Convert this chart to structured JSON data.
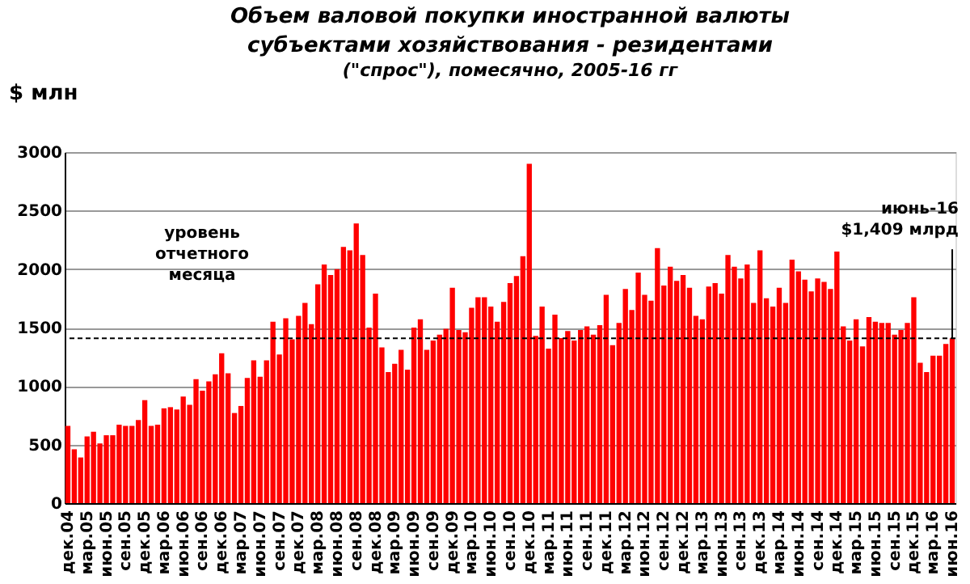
{
  "chart_data": {
    "type": "bar",
    "title": "Объем валовой  покупки  иностранной валюты\nсубъектами хозяйствования - резидентами",
    "subtitle": "(\"спрос\"), помесячно, 2005-16  гг",
    "ylabel": "$ млн",
    "categories": [
      "дек.04",
      null,
      null,
      "мар.05",
      null,
      null,
      "июн.05",
      null,
      null,
      "сен.05",
      null,
      null,
      "дек.05",
      null,
      null,
      "мар.06",
      null,
      null,
      "июн.06",
      null,
      null,
      "сен.06",
      null,
      null,
      "дек.06",
      null,
      null,
      "мар.07",
      null,
      null,
      "июн.07",
      null,
      null,
      "сен.07",
      null,
      null,
      "дек.07",
      null,
      null,
      "мар.08",
      null,
      null,
      "июн.08",
      null,
      null,
      "сен.08",
      null,
      null,
      "дек.08",
      null,
      null,
      "мар.09",
      null,
      null,
      "июн.09",
      null,
      null,
      "сен.09",
      null,
      null,
      "дек.09",
      null,
      null,
      "мар.10",
      null,
      null,
      "июн.10",
      null,
      null,
      "сен.10",
      null,
      null,
      "дек.10",
      null,
      null,
      "мар.11",
      null,
      null,
      "июн.11",
      null,
      null,
      "сен.11",
      null,
      null,
      "дек.11",
      null,
      null,
      "мар.12",
      null,
      null,
      "июн.12",
      null,
      null,
      "сен.12",
      null,
      null,
      "дек.12",
      null,
      null,
      "мар.13",
      null,
      null,
      "июн.13",
      null,
      null,
      "сен.13",
      null,
      null,
      "дек.13",
      null,
      null,
      "мар.14",
      null,
      null,
      "июн.14",
      null,
      null,
      "сен.14",
      null,
      null,
      "дек.14",
      null,
      null,
      "мар.15",
      null,
      null,
      "июн.15",
      null,
      null,
      "сен.15",
      null,
      null,
      "дек.15",
      null,
      null,
      "мар.16",
      null,
      null,
      "июн.16"
    ],
    "values": [
      660,
      460,
      390,
      570,
      610,
      510,
      580,
      580,
      670,
      660,
      660,
      710,
      880,
      660,
      670,
      810,
      820,
      800,
      910,
      840,
      1060,
      960,
      1040,
      1100,
      1280,
      1110,
      770,
      830,
      1070,
      1220,
      1080,
      1220,
      1550,
      1270,
      1580,
      1400,
      1600,
      1710,
      1530,
      1870,
      2040,
      1950,
      2000,
      2190,
      2160,
      2390,
      2120,
      1500,
      1790,
      1330,
      1120,
      1190,
      1310,
      1140,
      1500,
      1570,
      1310,
      1390,
      1440,
      1490,
      1840,
      1480,
      1460,
      1670,
      1760,
      1760,
      1680,
      1550,
      1720,
      1880,
      1940,
      2110,
      2900,
      1430,
      1680,
      1320,
      1610,
      1410,
      1470,
      1390,
      1480,
      1510,
      1440,
      1520,
      1780,
      1350,
      1540,
      1830,
      1650,
      1970,
      1780,
      1730,
      2180,
      1860,
      2020,
      1900,
      1950,
      1840,
      1600,
      1570,
      1850,
      1880,
      1790,
      2120,
      2020,
      1920,
      2040,
      1710,
      2160,
      1750,
      1680,
      1840,
      1710,
      2080,
      1980,
      1910,
      1810,
      1920,
      1890,
      1830,
      2150,
      1510,
      1390,
      1570,
      1340,
      1590,
      1550,
      1540,
      1540,
      1440,
      1480,
      1540,
      1760,
      1200,
      1120,
      1260,
      1260,
      1360,
      1409
    ],
    "color": "#ff0000",
    "ylim": [
      0,
      3000
    ],
    "yticks": [
      0,
      500,
      1000,
      1500,
      2000,
      2500,
      3000
    ],
    "grid": "y",
    "ref_lines": [
      {
        "axis": "y",
        "value": 1409,
        "label": "уровень\nотчетного\nмесяца",
        "color": "#000000",
        "line_style": "dashed"
      }
    ],
    "annotations": [
      {
        "text": "июнь-16\n$1,409 млрд",
        "x": "июн.16",
        "y": 1409
      }
    ]
  }
}
